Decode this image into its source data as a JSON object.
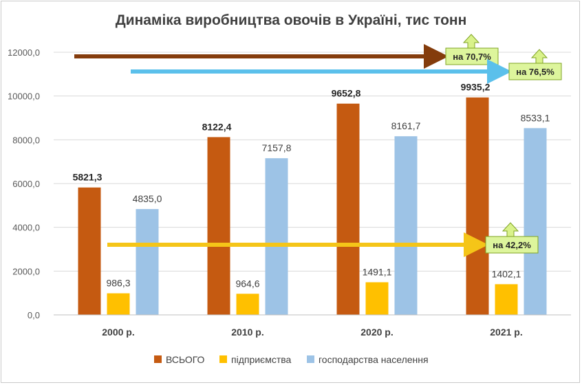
{
  "chart_data": {
    "type": "bar",
    "title": "Динаміка виробництва овочів в Україні, тис тонн",
    "categories": [
      "2000 р.",
      "2010 р.",
      "2020 р.",
      "2021 р."
    ],
    "ylim": [
      0,
      12000
    ],
    "yticks": [
      "0,0",
      "2000,0",
      "4000,0",
      "6000,0",
      "8000,0",
      "10000,0",
      "12000,0"
    ],
    "grid": true,
    "legend_position": "bottom",
    "series": [
      {
        "name": "ВСЬОГО",
        "color": "#c55a11",
        "values": [
          5821.3,
          8122.4,
          9652.8,
          9935.2
        ],
        "labels": [
          "5821,3",
          "8122,4",
          "9652,8",
          "9935,2"
        ],
        "label_bold": true
      },
      {
        "name": "підприємства",
        "color": "#ffc000",
        "values": [
          986.3,
          964.6,
          1491.1,
          1402.1
        ],
        "labels": [
          "986,3",
          "964,6",
          "1491,1",
          "1402,1"
        ],
        "label_bold": false
      },
      {
        "name": "господарства населення",
        "color": "#9dc3e6",
        "values": [
          4835.0,
          7157.8,
          8161.7,
          8533.1
        ],
        "labels": [
          "4835,0",
          "7157,8",
          "8161,7",
          "8533,1"
        ],
        "label_bold": false
      }
    ],
    "annotations": [
      {
        "series": "ВСЬОГО",
        "text": "на 70,7%",
        "color": "#843c0c"
      },
      {
        "series": "господарства населення",
        "text": "на 76,5%",
        "color": "#5bc0eb"
      },
      {
        "series": "підприємства",
        "text": "на 42,2%",
        "color": "#f5c518"
      }
    ]
  }
}
